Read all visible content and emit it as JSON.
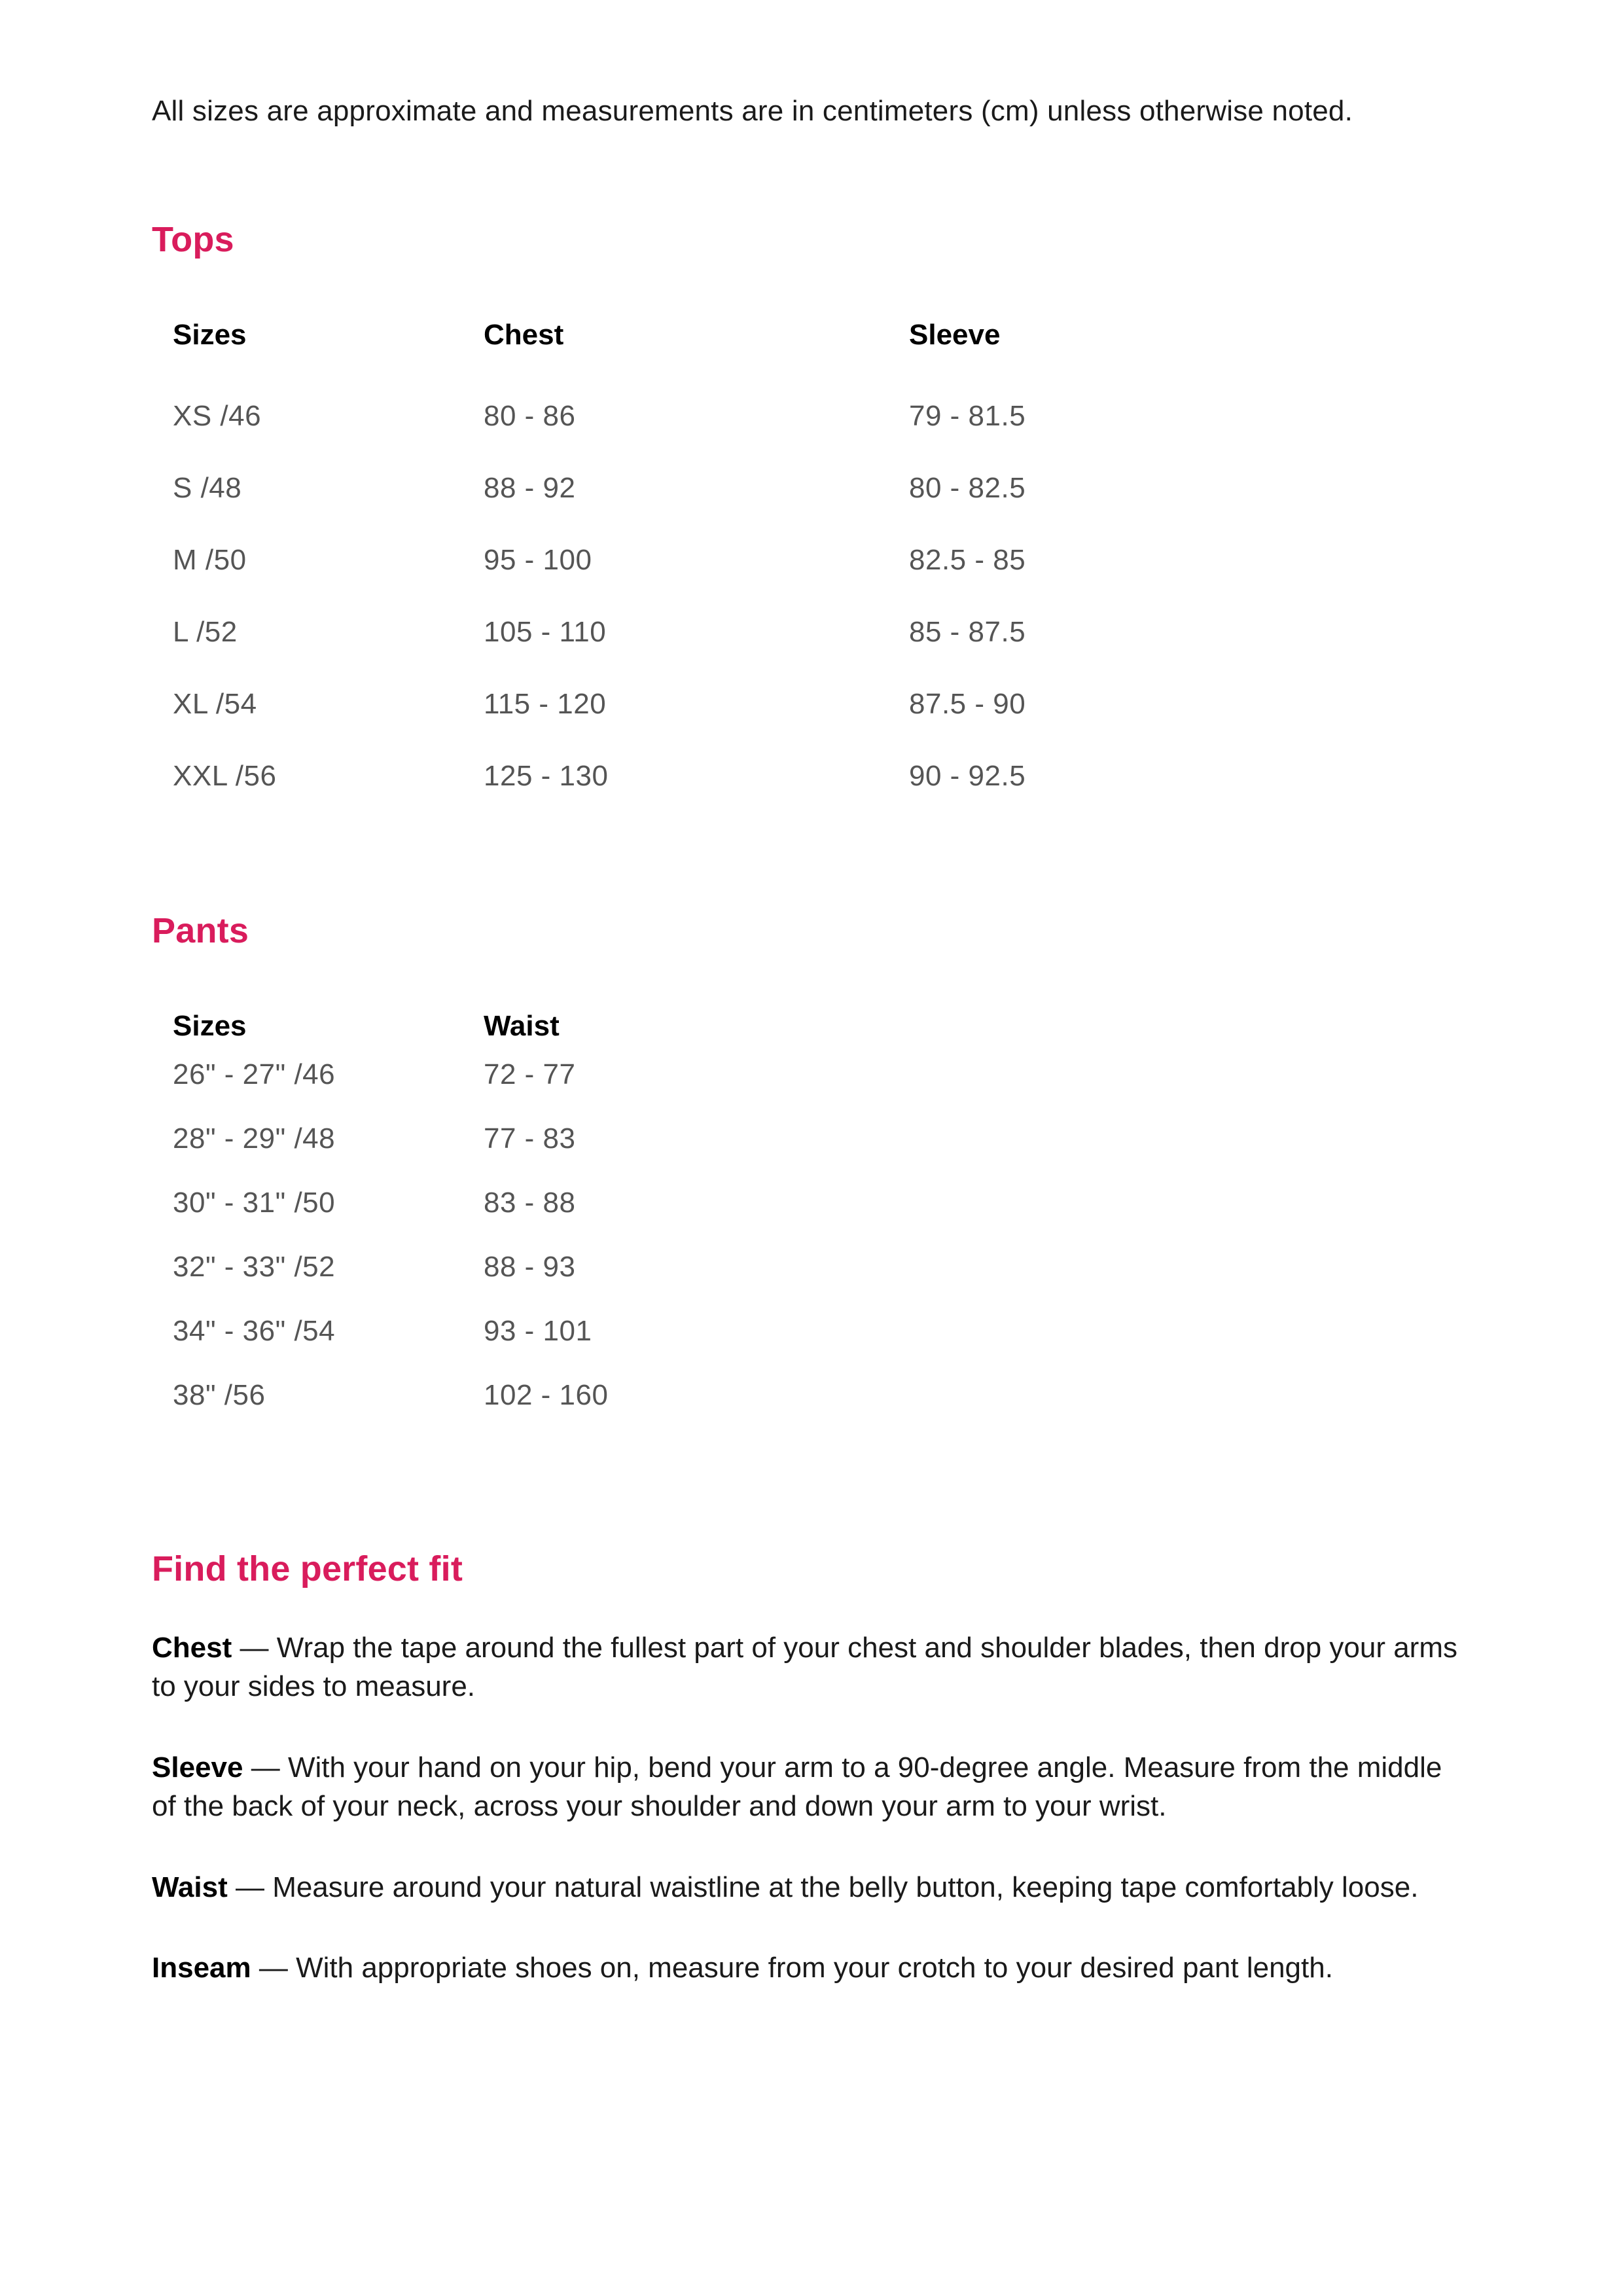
{
  "colors": {
    "heading": "#d91c5c",
    "body_text": "#1a1a1a",
    "cell_text": "#555555",
    "header_text": "#000000",
    "background": "#ffffff"
  },
  "typography": {
    "body_fontsize_pt": 33,
    "heading_fontsize_pt": 40,
    "body_weight": 300,
    "bold_weight": 700,
    "font_family": "Helvetica Neue"
  },
  "intro": "All sizes are approximate and measurements are in centimeters (cm) unless otherwise noted.",
  "tops": {
    "heading": "Tops",
    "columns": [
      "Sizes",
      "Chest",
      "Sleeve"
    ],
    "rows": [
      [
        "XS /46",
        "80 - 86",
        "79 - 81.5"
      ],
      [
        "S /48",
        "88 - 92",
        "80 - 82.5"
      ],
      [
        "M /50",
        "95 - 100",
        "82.5 - 85"
      ],
      [
        "L /52",
        "105 - 110",
        "85 - 87.5"
      ],
      [
        "XL /54",
        "115 - 120",
        "87.5 - 90"
      ],
      [
        "XXL /56",
        "125 - 130",
        "90 - 92.5"
      ]
    ]
  },
  "pants": {
    "heading": "Pants",
    "columns": [
      "Sizes",
      "Waist"
    ],
    "rows": [
      [
        "26\" - 27\" /46",
        "72 - 77"
      ],
      [
        "28\" - 29\" /48",
        "77 - 83"
      ],
      [
        "30\" - 31\" /50",
        "83 - 88"
      ],
      [
        "32\" - 33\" /52",
        "88 - 93"
      ],
      [
        "34\" - 36\" /54",
        "93 - 101"
      ],
      [
        "38\" /56",
        "102 - 160"
      ]
    ]
  },
  "fit": {
    "heading": "Find the perfect fit",
    "items": [
      {
        "label": "Chest",
        "text": "Wrap the tape around the fullest part of your chest and shoulder blades, then drop your arms to your sides to measure."
      },
      {
        "label": "Sleeve",
        "text": "With your hand on your hip, bend your arm to a 90-degree angle. Measure from the middle of the back of your neck, across your shoulder and down your arm to your wrist."
      },
      {
        "label": "Waist",
        "text": "Measure around your natural waistline at the belly button, keeping tape comfortably loose."
      },
      {
        "label": "Inseam",
        "text": "With appropriate shoes on, measure from your crotch to your desired pant length."
      }
    ]
  }
}
